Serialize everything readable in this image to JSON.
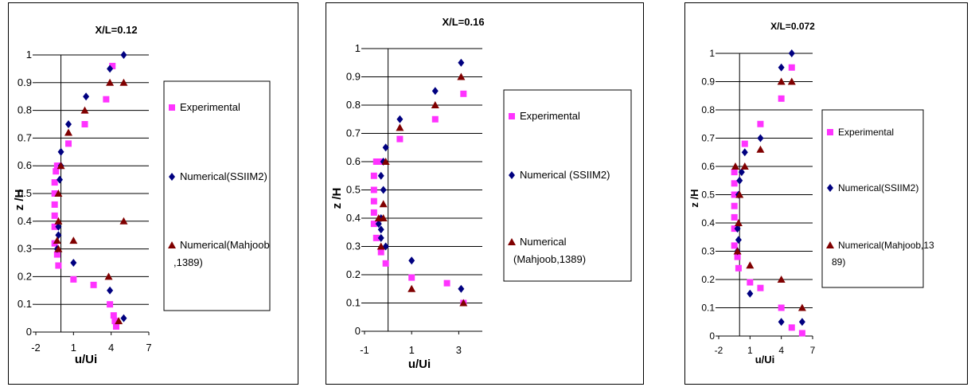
{
  "colors": {
    "experimental": "#FF33FF",
    "ssiim2": "#000080",
    "mahjoob": "#800000",
    "axis": "#000000",
    "grid": "#000000"
  },
  "chart_data": [
    {
      "type": "scatter",
      "title": "X/L=0.12",
      "xlabel": "u/Ui",
      "ylabel": "z /H",
      "xlim": [
        -2,
        7
      ],
      "ylim": [
        0,
        1
      ],
      "xticks": [
        -2,
        1,
        4,
        7
      ],
      "xticklabels": [
        "-2",
        "1",
        "4",
        "7"
      ],
      "yticks": [
        0,
        0.1,
        0.2,
        0.3,
        0.4,
        0.5,
        0.6,
        0.7,
        0.8,
        0.9,
        1
      ],
      "yticklabels": [
        "0",
        "0.1",
        "0.2",
        "0.3",
        "0.4",
        "0.5",
        "0.6",
        "0.7",
        "0.8",
        "0.9",
        "1"
      ],
      "grid": "horizontal",
      "legend_position": "right",
      "series": [
        {
          "name": "Experimental",
          "marker": "square",
          "x": [
            4.4,
            4.3,
            4.2,
            3.9,
            2.6,
            1.0,
            -0.2,
            -0.3,
            -0.5,
            -0.5,
            -0.5,
            -0.5,
            -0.5,
            -0.5,
            -0.4,
            -0.3,
            -0.2,
            0.6,
            1.9,
            3.6,
            4.1
          ],
          "y": [
            0.02,
            0.04,
            0.06,
            0.1,
            0.17,
            0.19,
            0.24,
            0.28,
            0.32,
            0.38,
            0.42,
            0.46,
            0.5,
            0.54,
            0.58,
            0.6,
            0.6,
            0.68,
            0.75,
            0.84,
            0.96
          ]
        },
        {
          "name": "Numerical(SSIIM2)",
          "marker": "diamond",
          "x": [
            5.0,
            3.9,
            1.0,
            -0.3,
            -0.2,
            -0.2,
            -0.1,
            0.0,
            0.0,
            0.6,
            2.0,
            3.9,
            5.0
          ],
          "y": [
            0.05,
            0.15,
            0.25,
            0.3,
            0.35,
            0.38,
            0.55,
            0.6,
            0.65,
            0.75,
            0.85,
            0.95,
            1.0
          ]
        },
        {
          "name": "Numerical(Mahjoob,1389)",
          "marker": "triangle",
          "x": [
            4.6,
            3.8,
            -0.2,
            -0.3,
            1.0,
            -0.2,
            5.0,
            -0.2,
            0.0,
            0.6,
            1.9,
            3.9,
            5.0
          ],
          "y": [
            0.04,
            0.2,
            0.3,
            0.33,
            0.33,
            0.4,
            0.4,
            0.5,
            0.6,
            0.72,
            0.8,
            0.9,
            0.9
          ]
        }
      ]
    },
    {
      "type": "scatter",
      "title": "X/L=0.16",
      "xlabel": "u/Ui",
      "ylabel": "z /H",
      "xlim": [
        -1,
        4
      ],
      "ylim": [
        0,
        1
      ],
      "xticks": [
        -1,
        1,
        3
      ],
      "xticklabels": [
        "-1",
        "1",
        "3"
      ],
      "yticks": [
        0,
        0.1,
        0.2,
        0.3,
        0.4,
        0.5,
        0.6,
        0.7,
        0.8,
        0.9,
        1
      ],
      "yticklabels": [
        "0",
        "0.1",
        "0.2",
        "0.3",
        "0.4",
        "0.5",
        "0.6",
        "0.7",
        "0.8",
        "0.9",
        "1"
      ],
      "grid": "horizontal",
      "legend_position": "right",
      "series": [
        {
          "name": "Experimental",
          "marker": "square",
          "x": [
            3.2,
            2.5,
            1.0,
            -0.1,
            -0.3,
            -0.5,
            -0.6,
            -0.6,
            -0.6,
            -0.6,
            -0.6,
            -0.5,
            -0.3,
            0.5,
            2.0,
            3.2
          ],
          "y": [
            0.1,
            0.17,
            0.19,
            0.24,
            0.28,
            0.33,
            0.38,
            0.42,
            0.46,
            0.5,
            0.55,
            0.6,
            0.6,
            0.68,
            0.75,
            0.84
          ]
        },
        {
          "name": "Numerical (SSIIM2)",
          "marker": "diamond",
          "x": [
            3.1,
            1.0,
            -0.1,
            -0.3,
            -0.3,
            -0.4,
            -0.3,
            -0.2,
            -0.3,
            -0.2,
            -0.1,
            0.5,
            2.0,
            3.1
          ],
          "y": [
            0.15,
            0.25,
            0.3,
            0.33,
            0.36,
            0.38,
            0.4,
            0.5,
            0.55,
            0.6,
            0.65,
            0.75,
            0.85,
            0.95
          ]
        },
        {
          "name": "Numerical (Mahjoob,1389)",
          "marker": "triangle",
          "x": [
            3.2,
            1.0,
            -0.3,
            -0.4,
            -0.2,
            -0.2,
            -0.1,
            0.5,
            2.0,
            3.1
          ],
          "y": [
            0.1,
            0.15,
            0.3,
            0.4,
            0.4,
            0.45,
            0.6,
            0.72,
            0.8,
            0.9
          ]
        }
      ]
    },
    {
      "type": "scatter",
      "title": "X/L=0.072",
      "xlabel": "u/Ui",
      "ylabel": "z /H",
      "xlim": [
        -2,
        7
      ],
      "ylim": [
        0,
        1
      ],
      "xticks": [
        -2,
        1,
        4,
        7
      ],
      "xticklabels": [
        "-2",
        "1",
        "4",
        "7"
      ],
      "yticks": [
        0,
        0.1,
        0.2,
        0.3,
        0.4,
        0.5,
        0.6,
        0.7,
        0.8,
        0.9,
        1
      ],
      "yticklabels": [
        "0",
        "0.1",
        "0.2",
        "0.3",
        "0.4",
        "0.5",
        "0.6",
        "0.7",
        "0.8",
        "0.9",
        "1"
      ],
      "grid": "horizontal",
      "legend_position": "right",
      "series": [
        {
          "name": "Experimental",
          "marker": "square",
          "x": [
            6.0,
            5.0,
            4.0,
            2.0,
            1.0,
            -0.1,
            -0.2,
            -0.5,
            -0.5,
            -0.5,
            -0.5,
            -0.5,
            -0.5,
            -0.5,
            0.5,
            2.0,
            4.0,
            5.0
          ],
          "y": [
            0.01,
            0.03,
            0.1,
            0.17,
            0.19,
            0.24,
            0.28,
            0.32,
            0.38,
            0.42,
            0.46,
            0.5,
            0.54,
            0.58,
            0.68,
            0.75,
            0.84,
            0.95
          ]
        },
        {
          "name": "Numerical(SSIIM2)",
          "marker": "diamond",
          "x": [
            4.0,
            6.0,
            1.0,
            -0.2,
            -0.1,
            -0.2,
            -0.1,
            0.0,
            0.2,
            0.5,
            2.0,
            4.0,
            5.0
          ],
          "y": [
            0.05,
            0.05,
            0.15,
            0.3,
            0.34,
            0.38,
            0.5,
            0.55,
            0.58,
            0.65,
            0.7,
            0.95,
            1.0
          ]
        },
        {
          "name": "Numerical(Mahjoob,13 89)",
          "marker": "triangle",
          "x": [
            6.0,
            4.0,
            1.0,
            -0.2,
            -0.1,
            0.0,
            -0.4,
            0.5,
            2.0,
            4.0,
            5.0
          ],
          "y": [
            0.1,
            0.2,
            0.25,
            0.3,
            0.4,
            0.5,
            0.6,
            0.6,
            0.66,
            0.9,
            0.9
          ]
        }
      ]
    }
  ]
}
